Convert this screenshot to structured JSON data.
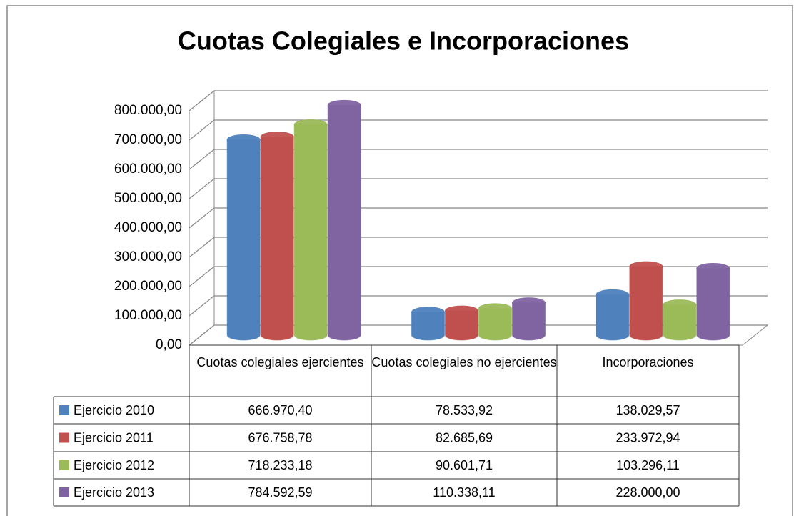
{
  "chart_data": {
    "type": "bar3d",
    "title": "Cuotas Colegiales e Incorporaciones",
    "categories": [
      "Cuotas colegiales ejercientes",
      "Cuotas colegiales no ejercientes",
      "Incorporaciones"
    ],
    "series": [
      {
        "name": "Ejercicio 2010",
        "color": "#4F81BD",
        "values": [
          666970.4,
          78533.92,
          138029.57
        ],
        "value_labels": [
          "666.970,40",
          "78.533,92",
          "138.029,57"
        ]
      },
      {
        "name": "Ejercicio 2011",
        "color": "#C0504D",
        "values": [
          676758.78,
          82685.69,
          233972.94
        ],
        "value_labels": [
          "676.758,78",
          "82.685,69",
          "233.972,94"
        ]
      },
      {
        "name": "Ejercicio 2012",
        "color": "#9BBB59",
        "values": [
          718233.18,
          90601.71,
          103296.11
        ],
        "value_labels": [
          "718.233,18",
          "90.601,71",
          "103.296,11"
        ]
      },
      {
        "name": "Ejercicio 2013",
        "color": "#8064A2",
        "values": [
          784592.59,
          110338.11,
          228000.0
        ],
        "value_labels": [
          "784.592,59",
          "110.338,11",
          "228.000,00"
        ]
      }
    ],
    "ylim": [
      0,
      800000
    ],
    "yticks": [
      {
        "value": 0,
        "label": "0,00"
      },
      {
        "value": 100000,
        "label": "100.000,00"
      },
      {
        "value": 200000,
        "label": "200.000,00"
      },
      {
        "value": 300000,
        "label": "300.000,00"
      },
      {
        "value": 400000,
        "label": "400.000,00"
      },
      {
        "value": 500000,
        "label": "500.000,00"
      },
      {
        "value": 600000,
        "label": "600.000,00"
      },
      {
        "value": 700000,
        "label": "700.000,00"
      },
      {
        "value": 800000,
        "label": "800.000,00"
      }
    ],
    "grid": true
  }
}
